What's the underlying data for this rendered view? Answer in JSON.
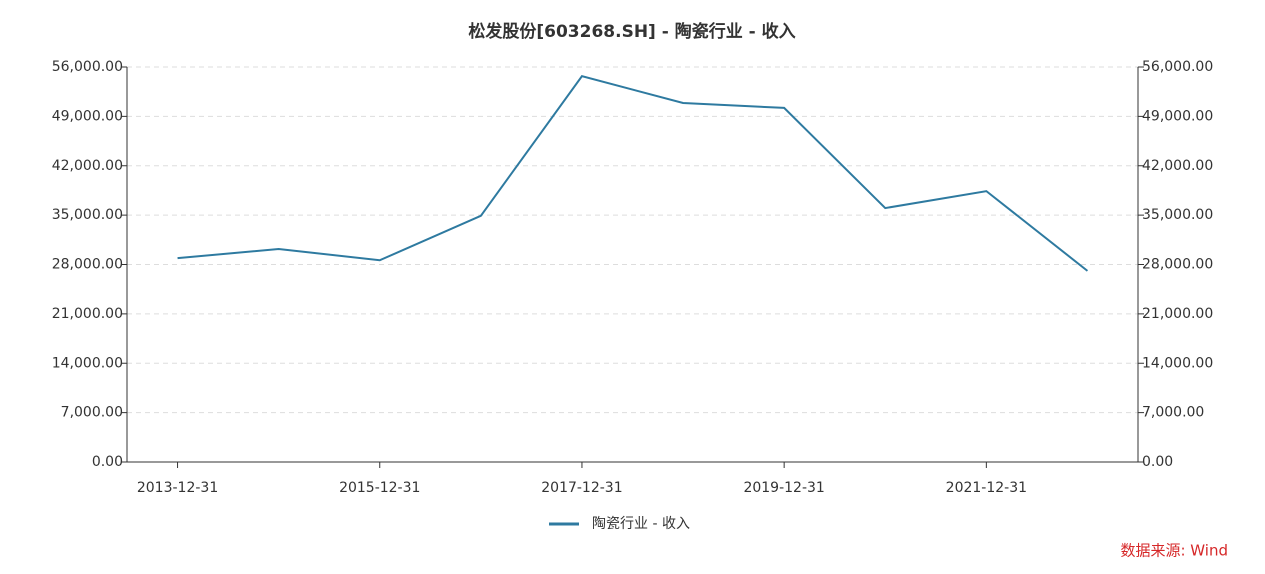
{
  "chart_data": {
    "type": "line",
    "title": "松发股份[603268.SH] - 陶瓷行业 - 收入",
    "source": "数据来源: Wind",
    "categories": [
      "2013-12-31",
      null,
      "2015-12-31",
      null,
      "2017-12-31",
      null,
      "2019-12-31",
      null,
      "2021-12-31",
      null
    ],
    "series": [
      {
        "name": "陶瓷行业 - 收入",
        "color": "#2e7aa0",
        "values": [
          28900,
          30200,
          28600,
          34900,
          54700,
          50900,
          50200,
          36000,
          38400,
          27100
        ]
      }
    ],
    "ylim": [
      0,
      56000
    ],
    "yticks": [
      {
        "value": 0,
        "label": "0.00"
      },
      {
        "value": 7000,
        "label": "7,000.00"
      },
      {
        "value": 14000,
        "label": "14,000.00"
      },
      {
        "value": 21000,
        "label": "21,000.00"
      },
      {
        "value": 28000,
        "label": "28,000.00"
      },
      {
        "value": 35000,
        "label": "35,000.00"
      },
      {
        "value": 42000,
        "label": "42,000.00"
      },
      {
        "value": 49000,
        "label": "49,000.00"
      },
      {
        "value": 56000,
        "label": "56,000.00"
      }
    ],
    "y2lim": [
      0,
      56000
    ],
    "y2ticks": [
      {
        "value": 0,
        "label": "0.00"
      },
      {
        "value": 7000,
        "label": "7,000.00"
      },
      {
        "value": 14000,
        "label": "14,000.00"
      },
      {
        "value": 21000,
        "label": "21,000.00"
      },
      {
        "value": 28000,
        "label": "28,000.00"
      },
      {
        "value": 35000,
        "label": "35,000.00"
      },
      {
        "value": 42000,
        "label": "42,000.00"
      },
      {
        "value": 49000,
        "label": "49,000.00"
      },
      {
        "value": 56000,
        "label": "56,000.00"
      }
    ],
    "grid": true
  }
}
